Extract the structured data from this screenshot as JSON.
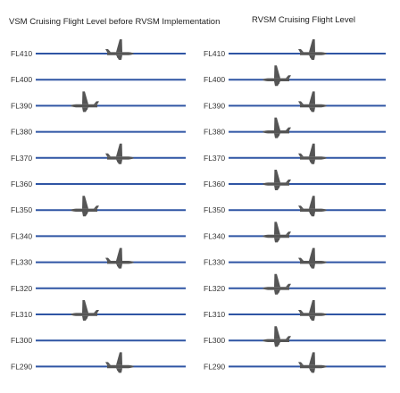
{
  "left_panel": {
    "title": "VSM Cruising Flight Level before RVSM Implementation",
    "levels": [
      {
        "label": "FL410",
        "aircraft": "eastbound"
      },
      {
        "label": "FL400",
        "aircraft": "none"
      },
      {
        "label": "FL390",
        "aircraft": "westbound"
      },
      {
        "label": "FL380",
        "aircraft": "none"
      },
      {
        "label": "FL370",
        "aircraft": "eastbound"
      },
      {
        "label": "FL360",
        "aircraft": "none"
      },
      {
        "label": "FL350",
        "aircraft": "westbound"
      },
      {
        "label": "FL340",
        "aircraft": "none"
      },
      {
        "label": "FL330",
        "aircraft": "eastbound"
      },
      {
        "label": "FL320",
        "aircraft": "none"
      },
      {
        "label": "FL310",
        "aircraft": "westbound"
      },
      {
        "label": "FL300",
        "aircraft": "none"
      },
      {
        "label": "FL290",
        "aircraft": "eastbound"
      }
    ]
  },
  "right_panel": {
    "title": "RVSM Cruising Flight Level",
    "levels": [
      {
        "label": "FL410",
        "aircraft": "eastbound"
      },
      {
        "label": "FL400",
        "aircraft": "westbound"
      },
      {
        "label": "FL390",
        "aircraft": "eastbound"
      },
      {
        "label": "FL380",
        "aircraft": "westbound"
      },
      {
        "label": "FL370",
        "aircraft": "eastbound"
      },
      {
        "label": "FL360",
        "aircraft": "westbound"
      },
      {
        "label": "FL350",
        "aircraft": "eastbound"
      },
      {
        "label": "FL340",
        "aircraft": "westbound"
      },
      {
        "label": "FL330",
        "aircraft": "eastbound"
      },
      {
        "label": "FL320",
        "aircraft": "westbound"
      },
      {
        "label": "FL310",
        "aircraft": "eastbound"
      },
      {
        "label": "FL300",
        "aircraft": "westbound"
      },
      {
        "label": "FL290",
        "aircraft": "eastbound"
      }
    ]
  },
  "colors": {
    "level_line": "#2f55a4",
    "aircraft": "#555555"
  }
}
